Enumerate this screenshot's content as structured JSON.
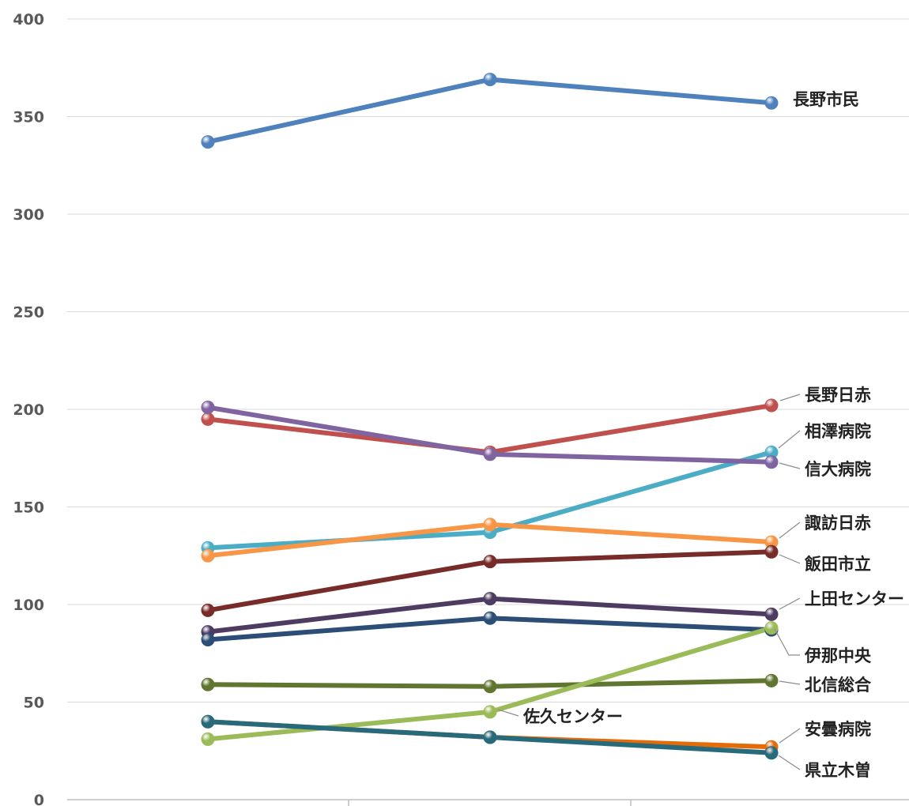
{
  "chart_data": {
    "type": "line",
    "categories": [
      "",
      "",
      ""
    ],
    "ylim": [
      0,
      400
    ],
    "yticks": [
      "0",
      "50",
      "100",
      "150",
      "200",
      "250",
      "300",
      "350",
      "400"
    ],
    "grid": true,
    "series": [
      {
        "name": "長野市民",
        "values": [
          337,
          369,
          357
        ],
        "color": "#4f81bd"
      },
      {
        "name": "長野日赤",
        "values": [
          195,
          178,
          202
        ],
        "color": "#c0504d"
      },
      {
        "name": "相澤病院",
        "values": [
          129,
          137,
          178
        ],
        "color": "#4bacc6"
      },
      {
        "name": "信大病院",
        "values": [
          201,
          177,
          173
        ],
        "color": "#8064a2"
      },
      {
        "name": "諏訪日赤",
        "values": [
          125,
          141,
          132
        ],
        "color": "#f79646"
      },
      {
        "name": "飯田市立",
        "values": [
          97,
          122,
          127
        ],
        "color": "#772c2a"
      },
      {
        "name": "上田センター",
        "values": [
          86,
          103,
          95
        ],
        "color": "#4d3b62"
      },
      {
        "name": "伊那中央",
        "values": [
          82,
          93,
          87
        ],
        "color": "#2c4d75"
      },
      {
        "name": "北信総合",
        "values": [
          59,
          58,
          61
        ],
        "color": "#5f7530"
      },
      {
        "name": "佐久センター",
        "values": [
          31,
          45,
          88
        ],
        "color": "#9bbb59"
      },
      {
        "name": "安曇病院",
        "values": [
          40,
          32,
          27
        ],
        "color": "#e36c09"
      },
      {
        "name": "県立木曽",
        "values": [
          40,
          32,
          24
        ],
        "color": "#276a7c"
      }
    ]
  }
}
